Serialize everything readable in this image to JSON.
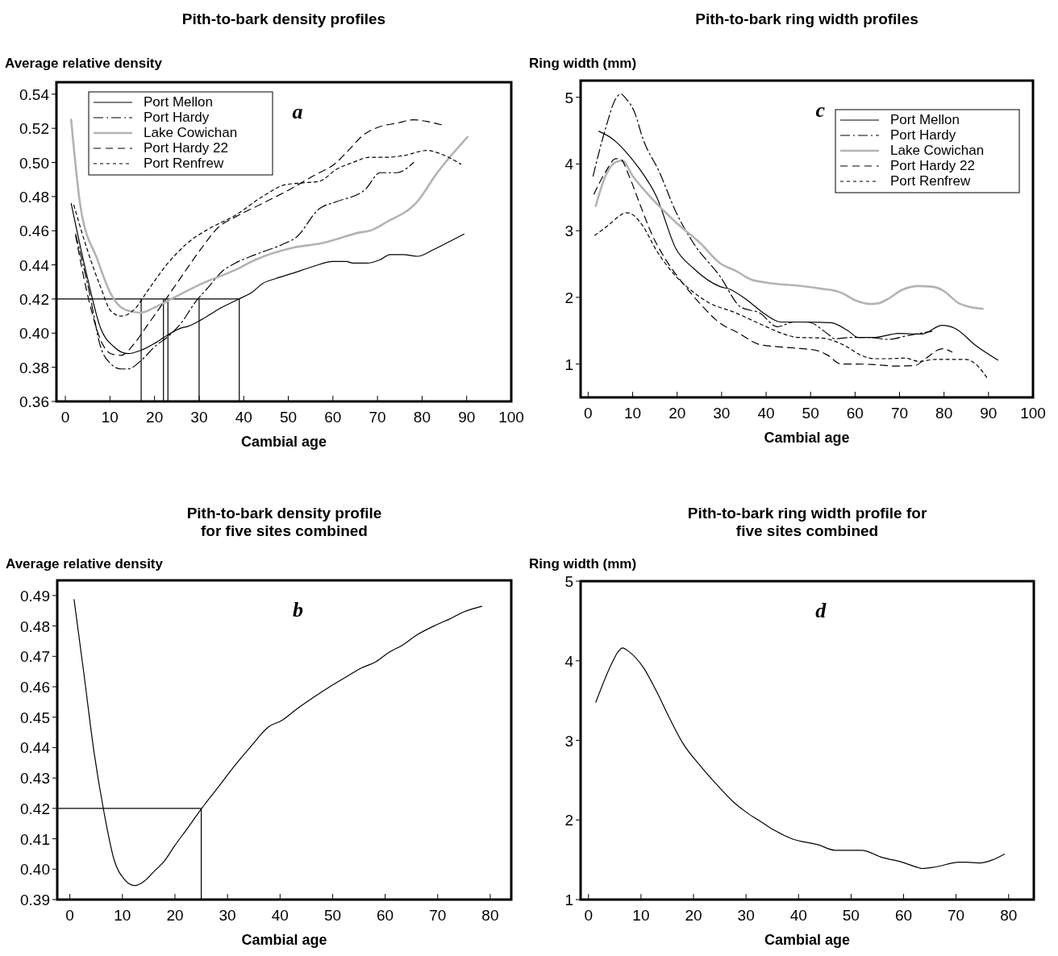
{
  "chart_data": [
    {
      "type": "line",
      "title": "Pith-to-bark density profiles",
      "ylabel": "Average relative density",
      "xlabel": "Cambial age",
      "annotations": [
        "a"
      ],
      "legend": "top left",
      "xlim": [
        -2,
        100
      ],
      "ylim": [
        0.36,
        0.547
      ],
      "xticks": [
        0,
        10,
        20,
        30,
        40,
        50,
        60,
        70,
        80,
        90,
        100
      ],
      "yticks": [
        0.36,
        0.38,
        {
          "value": 0.4,
          "label": "0.40"
        },
        0.42,
        0.44,
        0.46,
        0.48,
        {
          "value": 0.5,
          "label": "0.50"
        },
        0.52,
        0.54
      ],
      "ref_lines": [
        {
          "axis": "y",
          "value": 0.42
        },
        {
          "axis": "x",
          "value": 17
        },
        {
          "axis": "x",
          "value": 22
        },
        {
          "axis": "x",
          "value": 23
        },
        {
          "axis": "x",
          "value": 30
        },
        {
          "axis": "x",
          "value": 39
        }
      ],
      "series": [
        {
          "name": "Port Mellon",
          "color": "#000000",
          "line_style": "solid",
          "x": [
            1.3,
            4.9,
            7.9,
            10.9,
            14,
            17,
            20,
            23,
            26,
            27.5,
            30.6,
            34.3,
            38.9,
            41.9,
            44.2,
            47.2,
            50.9,
            55.5,
            60,
            63,
            64.5,
            67.5,
            70.6,
            72.8,
            75.8,
            78.9,
            82.6,
            86.4,
            89.4
          ],
          "values": [
            0.476,
            0.433,
            0.403,
            0.392,
            0.388,
            0.39,
            0.394,
            0.399,
            0.403,
            0.404,
            0.408,
            0.414,
            0.42,
            0.424,
            0.429,
            0.432,
            0.435,
            0.439,
            0.442,
            0.442,
            0.441,
            0.441,
            0.443,
            0.446,
            0.446,
            0.445,
            0.449,
            0.454,
            0.458
          ]
        },
        {
          "name": "Port Hardy",
          "color": "#000000",
          "line_style": "dashdot",
          "x": [
            2.3,
            5.3,
            7.9,
            10.2,
            12.5,
            14,
            17,
            20,
            23,
            26,
            29.1,
            32.1,
            35.1,
            38.1,
            42.6,
            48.7,
            51.7,
            57,
            60.8,
            67.2,
            70.6,
            72.5,
            74.3,
            78.1
          ],
          "values": [
            0.458,
            0.425,
            0.392,
            0.382,
            0.379,
            0.379,
            0.384,
            0.392,
            0.398,
            0.406,
            0.418,
            0.427,
            0.436,
            0.441,
            0.446,
            0.452,
            0.456,
            0.473,
            0.477,
            0.484,
            0.494,
            0.494,
            0.494,
            0.5
          ]
        },
        {
          "name": "Lake Cowichan",
          "color": "#b3b3b3",
          "line_style": "solid",
          "x": [
            1.3,
            3.4,
            7.2,
            10.2,
            13.2,
            17,
            20,
            23,
            30.6,
            38.1,
            42.6,
            50.9,
            58.1,
            60.8,
            66,
            68.3,
            72,
            78.9,
            83.4,
            90.2
          ],
          "values": [
            0.525,
            0.474,
            0.443,
            0.423,
            0.414,
            0.412,
            0.415,
            0.419,
            0.429,
            0.437,
            0.443,
            0.45,
            0.453,
            0.455,
            0.459,
            0.46,
            0.465,
            0.477,
            0.494,
            0.515
          ]
        },
        {
          "name": "Port Hardy 22",
          "color": "#000000",
          "line_style": "dashed",
          "x": [
            2.3,
            5.3,
            7.9,
            10.2,
            12.5,
            15.5,
            18.5,
            22.3,
            26,
            30.6,
            34.3,
            38.1,
            44.2,
            50.2,
            55.5,
            60.8,
            63.8,
            66.8,
            70.6,
            74.3,
            78.1,
            81.1,
            84.5
          ],
          "values": [
            0.457,
            0.419,
            0.396,
            0.388,
            0.387,
            0.394,
            0.405,
            0.419,
            0.433,
            0.45,
            0.462,
            0.468,
            0.476,
            0.484,
            0.492,
            0.5,
            0.508,
            0.516,
            0.521,
            0.523,
            0.525,
            0.524,
            0.522
          ]
        },
        {
          "name": "Port Renfrew",
          "color": "#000000",
          "line_style": "dotted",
          "x": [
            1.9,
            4.9,
            7.9,
            10.2,
            12.5,
            15.5,
            18.5,
            23,
            27.5,
            32.1,
            38.1,
            44.2,
            49.4,
            53.2,
            57,
            60.8,
            64.5,
            68.3,
            72,
            75.8,
            81.1,
            84.2,
            88.7
          ],
          "values": [
            0.475,
            0.449,
            0.427,
            0.413,
            0.41,
            0.414,
            0.425,
            0.441,
            0.453,
            0.461,
            0.469,
            0.48,
            0.487,
            0.488,
            0.489,
            0.496,
            0.5,
            0.503,
            0.503,
            0.504,
            0.507,
            0.505,
            0.499
          ]
        }
      ]
    },
    {
      "type": "line",
      "title": "Pith-to-bark ring width profiles",
      "ylabel": "Ring width (mm)",
      "xlabel": "Cambial age",
      "annotations": [
        "c"
      ],
      "legend": "top right",
      "xlim": [
        -1.7,
        100
      ],
      "ylim": [
        0.5,
        5.25
      ],
      "xticks": [
        0,
        10,
        20,
        30,
        40,
        50,
        60,
        70,
        80,
        90,
        100
      ],
      "yticks": [
        1,
        2,
        3,
        4,
        5
      ],
      "series": [
        {
          "name": "Port Mellon",
          "color": "#000000",
          "line_style": "solid",
          "x": [
            2.4,
            5.4,
            8.5,
            11.5,
            15.3,
            19.8,
            23.6,
            29.7,
            31.9,
            35.7,
            39.5,
            43.3,
            47.8,
            54.6,
            58.4,
            60.7,
            64.4,
            69.7,
            75,
            79.6,
            82.6,
            87.1,
            92.1
          ],
          "values": [
            4.49,
            4.38,
            4.18,
            3.93,
            3.52,
            2.72,
            2.44,
            2.16,
            2.12,
            1.96,
            1.76,
            1.63,
            1.63,
            1.62,
            1.5,
            1.4,
            1.4,
            1.46,
            1.45,
            1.58,
            1.53,
            1.28,
            1.06
          ]
        },
        {
          "name": "Port Hardy",
          "color": "#000000",
          "line_style": "dashdot",
          "x": [
            1.1,
            3.9,
            6.2,
            7.3,
            8.5,
            10.4,
            12.3,
            16,
            19.8,
            23.6,
            29.7,
            34.2,
            38.7,
            42.5,
            46.3,
            49.3,
            53.9,
            55.4,
            59.2,
            62.9,
            67.5,
            72,
            77.3
          ],
          "values": [
            3.82,
            4.53,
            4.98,
            5.05,
            4.98,
            4.78,
            4.38,
            3.88,
            3.27,
            2.82,
            2.31,
            1.86,
            1.76,
            1.56,
            1.63,
            1.63,
            1.45,
            1.38,
            1.4,
            1.4,
            1.37,
            1.43,
            1.49
          ]
        },
        {
          "name": "Lake Cowichan",
          "color": "#b3b3b3",
          "line_style": "solid",
          "x": [
            1.7,
            3.9,
            6.2,
            7.7,
            10,
            14.5,
            19.8,
            25.1,
            29.7,
            33.4,
            36.5,
            40.2,
            47.8,
            52.4,
            56.9,
            59.9,
            63.7,
            65.2,
            67.5,
            70.5,
            74.3,
            77.3,
            79.6,
            83.4,
            85.6,
            88.7
          ],
          "values": [
            3.37,
            3.82,
            4.03,
            4.05,
            3.82,
            3.47,
            3.12,
            2.82,
            2.51,
            2.39,
            2.27,
            2.22,
            2.17,
            2.13,
            2.07,
            1.96,
            1.9,
            1.91,
            1.98,
            2.11,
            2.17,
            2.16,
            2.11,
            1.91,
            1.86,
            1.83
          ]
        },
        {
          "name": "Port Hardy 22",
          "color": "#000000",
          "line_style": "dashed",
          "x": [
            1.3,
            3.9,
            6.2,
            7.3,
            9.2,
            11.5,
            14.5,
            17.5,
            21.3,
            25.1,
            29.7,
            33.4,
            38.7,
            42.5,
            46.3,
            51.6,
            53.9,
            56.9,
            60.7,
            64.4,
            69,
            73.5,
            75.8,
            79.6,
            81.8
          ],
          "values": [
            3.55,
            3.88,
            4.08,
            4.07,
            3.82,
            3.42,
            2.92,
            2.56,
            2.21,
            1.91,
            1.61,
            1.48,
            1.29,
            1.26,
            1.24,
            1.2,
            1.13,
            1.0,
            1.0,
            0.99,
            0.97,
            0.98,
            1.08,
            1.23,
            1.18
          ]
        },
        {
          "name": "Port Renfrew",
          "color": "#000000",
          "line_style": "dotted",
          "x": [
            1.5,
            4.7,
            7,
            8.5,
            10,
            12.3,
            15.3,
            19.8,
            23.6,
            27.4,
            32.7,
            38.7,
            44,
            47,
            52.4,
            57.6,
            61.4,
            64.4,
            67.5,
            71.3,
            74.3,
            78.1,
            84.9,
            87.1,
            90
          ],
          "values": [
            2.93,
            3.09,
            3.22,
            3.27,
            3.24,
            3.07,
            2.71,
            2.31,
            2.08,
            1.91,
            1.78,
            1.6,
            1.45,
            1.4,
            1.39,
            1.28,
            1.13,
            1.08,
            1.08,
            1.09,
            1.04,
            1.07,
            1.07,
            1.0,
            0.76
          ]
        }
      ]
    },
    {
      "type": "line",
      "title": "Pith-to-bark density profile\nfor five sites combined",
      "ylabel": "Average relative density",
      "xlabel": "Cambial age",
      "annotations": [
        "b"
      ],
      "xlim": [
        -2.4,
        84
      ],
      "ylim": [
        0.39,
        0.495
      ],
      "xticks": [
        0,
        10,
        20,
        30,
        40,
        50,
        60,
        70,
        80
      ],
      "yticks": [
        {
          "value": 0.39,
          "label": "0.39"
        },
        {
          "value": 0.4,
          "label": "0.40"
        },
        0.41,
        0.42,
        0.43,
        0.44,
        0.45,
        0.46,
        0.47,
        0.48,
        0.49
      ],
      "ref_lines": [
        {
          "axis": "y",
          "value": 0.42
        },
        {
          "axis": "x",
          "value": 25
        }
      ],
      "series": [
        {
          "color": "#000000",
          "line_style": "solid",
          "x": [
            0.8,
            2.7,
            4.6,
            6.5,
            8.4,
            10.4,
            12.3,
            14.2,
            16.1,
            18,
            19.9,
            22.5,
            25,
            28.2,
            31.4,
            34.6,
            37.8,
            40.4,
            42.9,
            46.1,
            50,
            53.2,
            55.4,
            58.3,
            60.8,
            63.4,
            65.9,
            69.8,
            72.3,
            74.9,
            78.4
          ],
          "values": [
            0.4887,
            0.4639,
            0.4385,
            0.4187,
            0.4032,
            0.3966,
            0.3946,
            0.3961,
            0.3994,
            0.4027,
            0.4076,
            0.4137,
            0.4198,
            0.4269,
            0.4341,
            0.4407,
            0.4468,
            0.449,
            0.4523,
            0.4562,
            0.4606,
            0.4639,
            0.4661,
            0.4683,
            0.4714,
            0.4738,
            0.4769,
            0.4804,
            0.4823,
            0.4846,
            0.4865
          ]
        }
      ]
    },
    {
      "type": "line",
      "title": "Pith-to-bark ring width profile for\nfive sites combined",
      "ylabel": "Ring width (mm)",
      "xlabel": "Cambial age",
      "annotations": [
        "d"
      ],
      "xlim": [
        -1.5,
        84.8
      ],
      "ylim": [
        1,
        5
      ],
      "xticks": [
        0,
        10,
        20,
        30,
        40,
        50,
        60,
        70,
        80
      ],
      "yticks": [
        1,
        2,
        3,
        4,
        5
      ],
      "series": [
        {
          "color": "#000000",
          "line_style": "solid",
          "x": [
            1.4,
            4.6,
            5.6,
            6.5,
            7.8,
            10.4,
            13,
            15.5,
            18.1,
            21.3,
            23.8,
            27.7,
            30.2,
            32.8,
            35.4,
            38.9,
            43.7,
            46.9,
            52,
            55.9,
            59.7,
            62.9,
            63.5,
            66.1,
            70.6,
            71.9,
            74.4,
            79.2
          ],
          "values": [
            3.48,
            3.99,
            4.11,
            4.16,
            4.11,
            3.92,
            3.61,
            3.27,
            2.95,
            2.68,
            2.49,
            2.22,
            2.09,
            1.98,
            1.87,
            1.76,
            1.69,
            1.62,
            1.62,
            1.53,
            1.47,
            1.4,
            1.39,
            1.41,
            1.47,
            1.47,
            1.46,
            1.57
          ]
        }
      ]
    }
  ]
}
